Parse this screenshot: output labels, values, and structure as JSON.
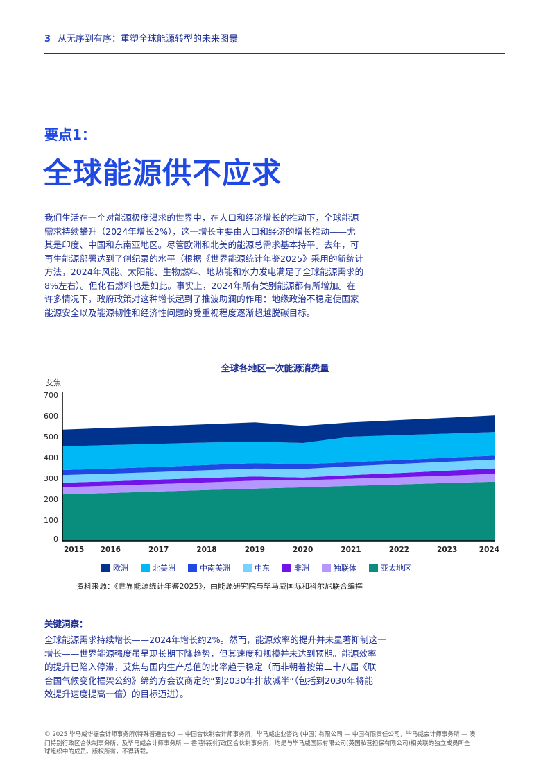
{
  "header": {
    "page_number": "3",
    "title": "从无序到有序：重塑全球能源转型的未来图景"
  },
  "kicker": "要点1：",
  "headline": "全球能源供不应求",
  "intro_lines": [
    "我们生活在一个对能源极度渴求的世界中，在人口和经济增长的推动下，全球能源",
    "需求持续攀升（2024年增长2%），这一增长主要由人口和经济的增长推动——尤",
    "其是印度、中国和东南亚地区。尽管欧洲和北美的能源总需求基本持平。去年，可",
    "再生能源部署达到了创纪录的水平（根据《世界能源统计年鉴2025》采用的新统计",
    "方法，2024年风能、太阳能、生物燃料、地热能和水力发电满足了全球能源需求的",
    "8%左右）。但化石燃料也是如此。事实上，2024年所有类别能源都有所增加。在",
    "许多情况下，政府政策对这种增长起到了推波助澜的作用：地缘政治不稳定使国家",
    "能源安全以及能源韧性和经济性问题的受重视程度逐渐超越脱碳目标。"
  ],
  "chart_data": {
    "type": "area",
    "stacked": true,
    "title": "全球各地区一次能源消费量",
    "ylabel": "艾焦",
    "xlabel": "",
    "ylim": [
      0,
      700
    ],
    "yticks": [
      0,
      100,
      200,
      300,
      400,
      500,
      600,
      700
    ],
    "x": [
      2015,
      2016,
      2017,
      2018,
      2019,
      2020,
      2021,
      2022,
      2023,
      2024
    ],
    "legend_position": "bottom",
    "grid": false,
    "series": [
      {
        "name": "亚太地区",
        "color": "#098e7e",
        "values": [
          223,
          230,
          237,
          244,
          251,
          257,
          264,
          271,
          278,
          284
        ]
      },
      {
        "name": "独联体",
        "color": "#b497ff",
        "values": [
          35,
          35,
          36,
          37,
          38,
          34,
          34,
          34,
          35,
          38
        ]
      },
      {
        "name": "非洲",
        "color": "#7213ea",
        "values": [
          21,
          21,
          21,
          21,
          20,
          13,
          18,
          21,
          24,
          26
        ]
      },
      {
        "name": "中东",
        "color": "#76d2ff",
        "values": [
          37,
          37,
          37,
          37,
          38,
          41,
          42,
          43,
          43,
          43
        ]
      },
      {
        "name": "中南美洲",
        "color": "#1e49e2",
        "values": [
          24,
          24,
          24,
          25,
          26,
          23,
          20,
          19,
          19,
          18
        ]
      },
      {
        "name": "北美洲",
        "color": "#00b8f5",
        "values": [
          114,
          113,
          111,
          108,
          103,
          102,
          122,
          120,
          116,
          114
        ]
      },
      {
        "name": "欧洲",
        "color": "#00338d",
        "values": [
          80,
          83,
          85,
          88,
          93,
          82,
          69,
          72,
          76,
          80
        ]
      }
    ],
    "legend_order": [
      "欧洲",
      "北美洲",
      "中南美洲",
      "中东",
      "非洲",
      "独联体",
      "亚太地区"
    ]
  },
  "source": "资料来源：《世界能源统计年鉴2025》，由能源研究院与毕马威国际和科尔尼联合编撰",
  "insight": {
    "heading": "关键洞察：",
    "lines": [
      "全球能源需求持续增长——2024年增长约2%。然而，能源效率的提升并未显著抑制这一",
      "增长——世界能源强度虽呈现长期下降趋势，但其速度和规模并未达到预期。能源效率",
      "的提升已陷入停滞，艾焦与国内生产总值的比率趋于稳定（而非朝着按第二十八届《联",
      "合国气候变化框架公约》缔约方会议商定的“到2030年排放减半”（包括到2030年将能",
      "效提升速度提高一倍）的目标迈进）。"
    ]
  },
  "footer_lines": [
    "© 2025 毕马威华振会计师事务所(特殊普通合伙) — 中国合伙制会计师事务所，毕马威企业咨询 (中国) 有限公司 — 中国有限责任公司，毕马威会计师事务所 — 澳",
    "门特别行政区合伙制事务所，及毕马威会计师事务所 — 香港特别行政区合伙制事务所，均是与毕马威国际有限公司(英国私营担保有限公司)相关联的独立成员所全",
    "球组织中的成员。版权所有，不得转载。"
  ]
}
